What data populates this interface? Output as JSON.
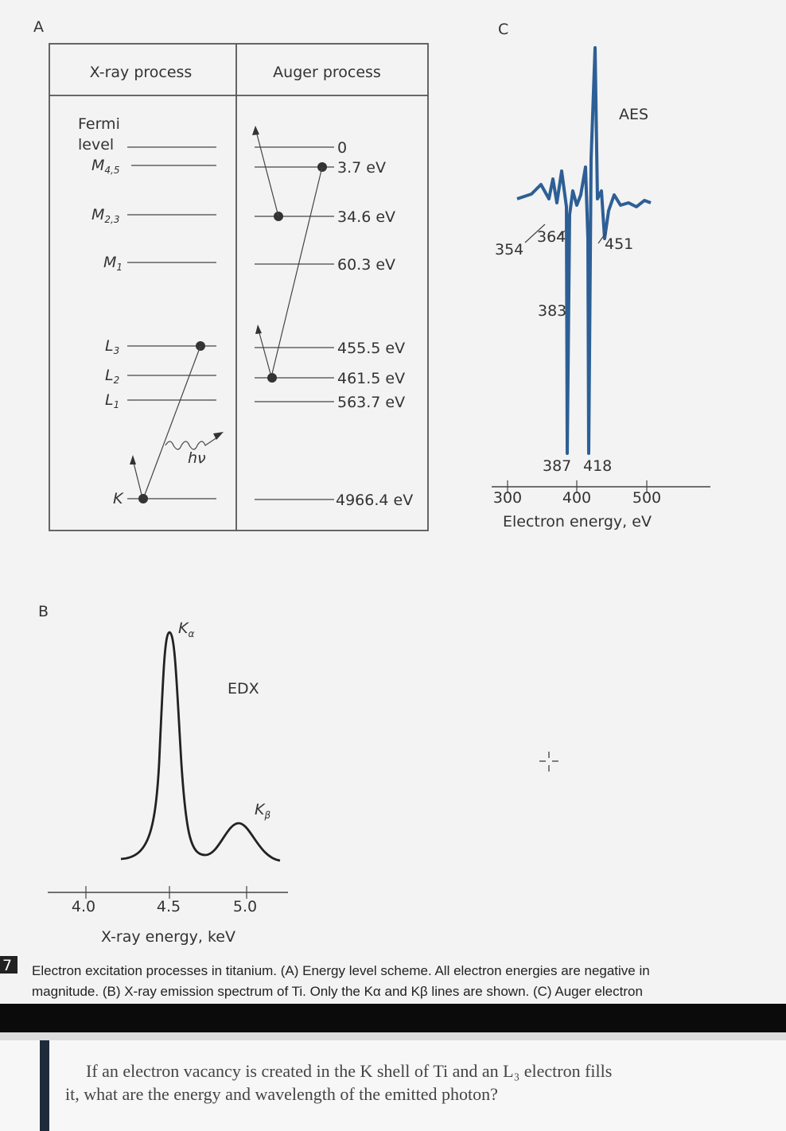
{
  "panels": {
    "a": "A",
    "b": "B",
    "c": "C"
  },
  "energy_levels": {
    "headers": [
      "X-ray process",
      "Auger process"
    ],
    "fermi_label": [
      "Fermi",
      "level"
    ],
    "shells": [
      {
        "symbol": "M",
        "subscript": "4,5"
      },
      {
        "symbol": "M",
        "subscript": "2,3"
      },
      {
        "symbol": "M",
        "subscript": "1"
      },
      {
        "symbol": "L",
        "subscript": "3"
      },
      {
        "symbol": "L",
        "subscript": "2"
      },
      {
        "symbol": "L",
        "subscript": "1"
      },
      {
        "symbol": "K"
      }
    ],
    "energies": [
      "0",
      "3.7 eV",
      "34.6 eV",
      "60.3 eV",
      "455.5 eV",
      "461.5 eV",
      "563.7 eV",
      "4966.4 eV"
    ],
    "photon_label": "hν"
  },
  "edx": {
    "title": "EDX",
    "peaks": [
      {
        "symbol": "K",
        "subscript": "α"
      },
      {
        "symbol": "K",
        "subscript": "β"
      }
    ],
    "x_ticks": [
      "4.0",
      "4.5",
      "5.0"
    ],
    "x_label": "X-ray energy, keV"
  },
  "aes": {
    "title": "AES",
    "peak_labels": [
      "354",
      "364",
      "451",
      "383",
      "387",
      "418"
    ],
    "x_ticks": [
      "300",
      "400",
      "500"
    ],
    "x_label": "Electron energy, eV"
  },
  "caption": {
    "number": "7",
    "lines": [
      "Electron excitation processes in titanium. (A) Energy level scheme. All electron energies are negative in",
      "magnitude. (B) X-ray emission spectrum of Ti. Only the Kα and Kβ lines are shown. (C) Auger electron"
    ]
  },
  "question": {
    "lines": [
      "If an electron vacancy is created in the K shell of Ti and an L₃ electron fills",
      "it, what are the energy and wavelength of the emitted photon?"
    ]
  }
}
